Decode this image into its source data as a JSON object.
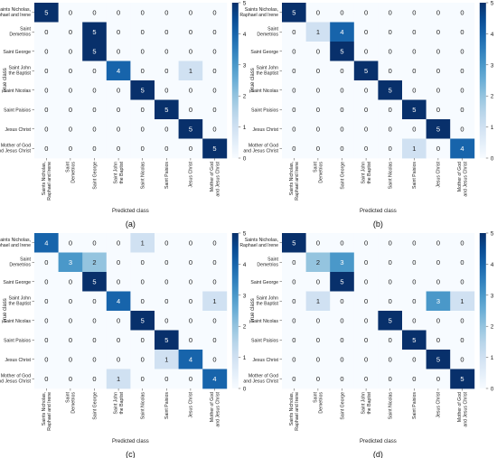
{
  "chart_data": [
    {
      "type": "heatmap",
      "panel_label": "(a)",
      "xlabel": "Predicted class",
      "ylabel": "True class",
      "categories": [
        "Saints Nicholas, Raphael and Irene",
        "Saint Demetrios",
        "Saint George",
        "Saint John the Baptist",
        "Saint Nicolas",
        "Saint Paisios",
        "Jesus Christ",
        "Mother of God and Jesus Christ"
      ],
      "values": [
        [
          5,
          0,
          0,
          0,
          0,
          0,
          0,
          0
        ],
        [
          0,
          0,
          5,
          0,
          0,
          0,
          0,
          0
        ],
        [
          0,
          0,
          5,
          0,
          0,
          0,
          0,
          0
        ],
        [
          0,
          0,
          0,
          4,
          0,
          0,
          1,
          0
        ],
        [
          0,
          0,
          0,
          0,
          5,
          0,
          0,
          0
        ],
        [
          0,
          0,
          0,
          0,
          0,
          5,
          0,
          0
        ],
        [
          0,
          0,
          0,
          0,
          0,
          0,
          5,
          0
        ],
        [
          0,
          0,
          0,
          0,
          0,
          0,
          0,
          5
        ]
      ],
      "colorbar": {
        "min": 0,
        "max": 5,
        "ticks": [
          0,
          1,
          2,
          3,
          4,
          5
        ]
      }
    },
    {
      "type": "heatmap",
      "panel_label": "(b)",
      "xlabel": "Predicted class",
      "ylabel": "True class",
      "categories": [
        "Saints Nicholas, Raphael and Irene",
        "Saint Demetrios",
        "Saint George",
        "Saint John the Baptist",
        "Saint Nicolas",
        "Saint Paisios",
        "Jesus Christ",
        "Mother of God and Jesus Christ"
      ],
      "values": [
        [
          5,
          0,
          0,
          0,
          0,
          0,
          0,
          0
        ],
        [
          0,
          1,
          4,
          0,
          0,
          0,
          0,
          0
        ],
        [
          0,
          0,
          5,
          0,
          0,
          0,
          0,
          0
        ],
        [
          0,
          0,
          0,
          5,
          0,
          0,
          0,
          0
        ],
        [
          0,
          0,
          0,
          0,
          5,
          0,
          0,
          0
        ],
        [
          0,
          0,
          0,
          0,
          0,
          5,
          0,
          0
        ],
        [
          0,
          0,
          0,
          0,
          0,
          0,
          5,
          0
        ],
        [
          0,
          0,
          0,
          0,
          0,
          1,
          0,
          4
        ]
      ],
      "colorbar": {
        "min": 0,
        "max": 5,
        "ticks": [
          0,
          1,
          2,
          3,
          4,
          5
        ]
      }
    },
    {
      "type": "heatmap",
      "panel_label": "(c)",
      "xlabel": "Predicted class",
      "ylabel": "True class",
      "categories": [
        "Saints Nicholas, Raphael and Irene",
        "Saint Demetrios",
        "Saint George",
        "Saint John the Baptist",
        "Saint Nicolas",
        "Saint Paisios",
        "Jesus Christ",
        "Mother of God and Jesus Christ"
      ],
      "values": [
        [
          4,
          0,
          0,
          0,
          1,
          0,
          0,
          0
        ],
        [
          0,
          3,
          2,
          0,
          0,
          0,
          0,
          0
        ],
        [
          0,
          0,
          5,
          0,
          0,
          0,
          0,
          0
        ],
        [
          0,
          0,
          0,
          4,
          0,
          0,
          0,
          1
        ],
        [
          0,
          0,
          0,
          0,
          5,
          0,
          0,
          0
        ],
        [
          0,
          0,
          0,
          0,
          0,
          5,
          0,
          0
        ],
        [
          0,
          0,
          0,
          0,
          0,
          1,
          4,
          0
        ],
        [
          0,
          0,
          0,
          1,
          0,
          0,
          0,
          4
        ]
      ],
      "colorbar": {
        "min": 0,
        "max": 5,
        "ticks": [
          0,
          1,
          2,
          3,
          4,
          5
        ]
      }
    },
    {
      "type": "heatmap",
      "panel_label": "(d)",
      "xlabel": "Predicted class",
      "ylabel": "True class",
      "categories": [
        "Saints Nicholas, Raphael and Irene",
        "Saint Demetrios",
        "Saint George",
        "Saint John the Baptist",
        "Saint Nicolas",
        "Saint Paisios",
        "Jesus Christ",
        "Mother of God and Jesus Christ"
      ],
      "values": [
        [
          5,
          0,
          0,
          0,
          0,
          0,
          0,
          0
        ],
        [
          0,
          2,
          3,
          0,
          0,
          0,
          0,
          0
        ],
        [
          0,
          0,
          5,
          0,
          0,
          0,
          0,
          0
        ],
        [
          0,
          1,
          0,
          0,
          0,
          0,
          3,
          1
        ],
        [
          0,
          0,
          0,
          0,
          5,
          0,
          0,
          0
        ],
        [
          0,
          0,
          0,
          0,
          0,
          5,
          0,
          0
        ],
        [
          0,
          0,
          0,
          0,
          0,
          0,
          5,
          0
        ],
        [
          0,
          0,
          0,
          0,
          0,
          0,
          0,
          5
        ]
      ],
      "colorbar": {
        "min": 0,
        "max": 5,
        "ticks": [
          0,
          1,
          2,
          3,
          4,
          5
        ]
      }
    }
  ],
  "colors": {
    "low": "#f7fbff",
    "high": "#08306b",
    "mid": "#6baed6"
  }
}
